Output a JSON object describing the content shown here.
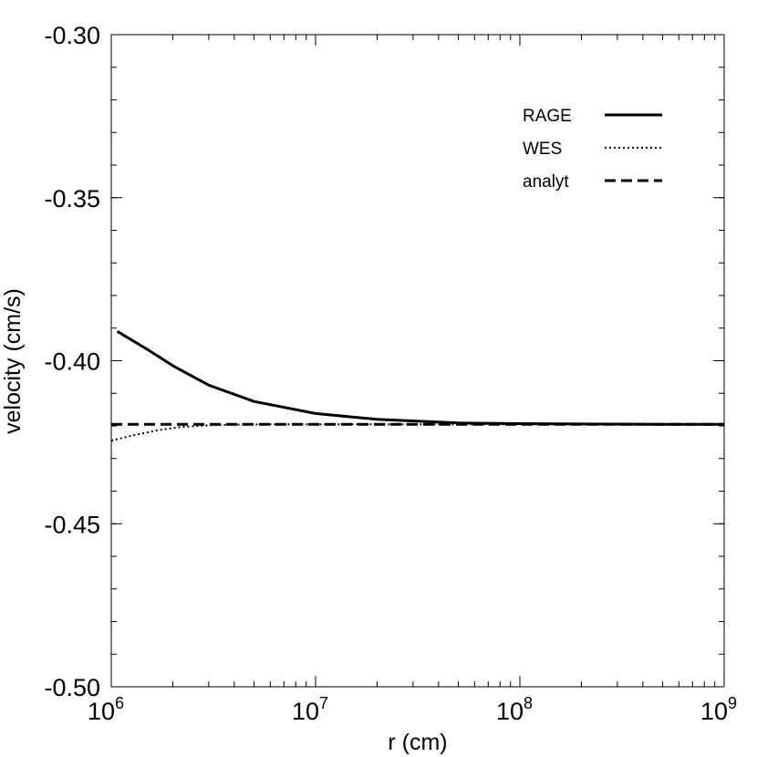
{
  "chart_data": {
    "type": "line",
    "title": "",
    "xlabel": "r (cm)",
    "ylabel": "velocity (cm/s)",
    "xscale": "log",
    "xlim": [
      1000000,
      1000000000
    ],
    "ylim": [
      -0.5,
      -0.3
    ],
    "grid": false,
    "legend_position": "top-right",
    "x_ticks": [
      {
        "value": 1000000,
        "base": "10",
        "exp": "6"
      },
      {
        "value": 10000000,
        "base": "10",
        "exp": "7"
      },
      {
        "value": 100000000,
        "base": "10",
        "exp": "8"
      },
      {
        "value": 1000000000,
        "base": "10",
        "exp": "9"
      }
    ],
    "y_ticks": [
      {
        "value": -0.3,
        "label": "-0.30"
      },
      {
        "value": -0.35,
        "label": "-0.35"
      },
      {
        "value": -0.4,
        "label": "-0.40"
      },
      {
        "value": -0.45,
        "label": "-0.45"
      },
      {
        "value": -0.5,
        "label": "-0.50"
      }
    ],
    "series": [
      {
        "name": "RAGE",
        "style": "solid",
        "x": [
          1070000,
          1500000,
          2000000,
          3000000,
          5000000,
          10000000,
          20000000,
          50000000,
          100000000,
          200000000,
          500000000,
          1000000000
        ],
        "y": [
          -0.391,
          -0.3965,
          -0.4015,
          -0.4075,
          -0.4125,
          -0.4162,
          -0.418,
          -0.4191,
          -0.4193,
          -0.4194,
          -0.4195,
          -0.4195
        ]
      },
      {
        "name": "WES",
        "style": "dotted",
        "x": [
          1000000,
          1300000,
          1700000,
          2200000,
          3000000,
          4000000,
          6000000,
          10000000,
          100000000,
          1000000000
        ],
        "y": [
          -0.4245,
          -0.4228,
          -0.4213,
          -0.4203,
          -0.4198,
          -0.4196,
          -0.4195,
          -0.4195,
          -0.4195,
          -0.4195
        ]
      },
      {
        "name": "analyt",
        "style": "dashed",
        "x": [
          1000000,
          1000000000
        ],
        "y": [
          -0.4195,
          -0.4195
        ]
      }
    ]
  }
}
